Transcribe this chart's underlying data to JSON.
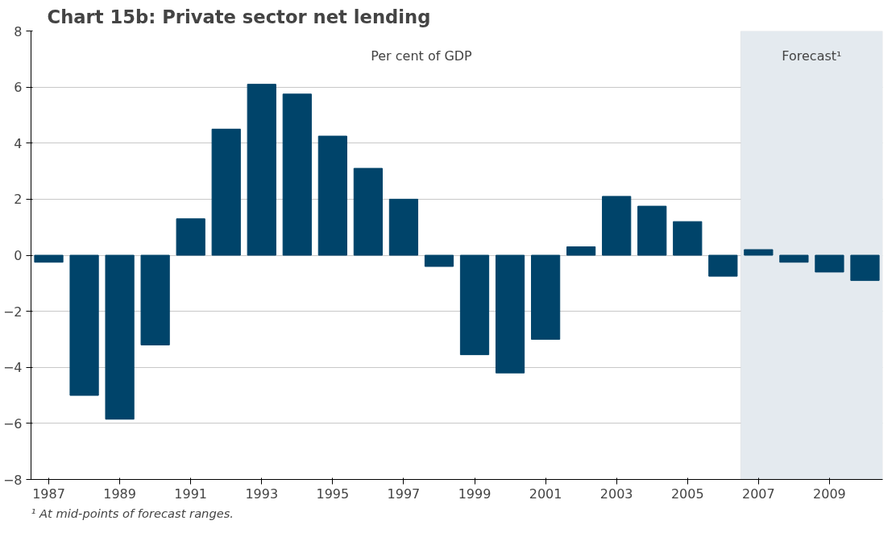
{
  "chart_data": {
    "type": "bar",
    "title": "Chart 15b: Private sector net lending",
    "x": [
      1987,
      1988,
      1989,
      1990,
      1991,
      1992,
      1993,
      1994,
      1995,
      1996,
      1997,
      1998,
      1999,
      2000,
      2001,
      2002,
      2003,
      2004,
      2005,
      2006,
      2007,
      2008,
      2009,
      2010
    ],
    "series": [
      {
        "color": "#00446a",
        "values": [
          -0.25,
          -5.0,
          -5.85,
          -3.2,
          1.3,
          4.5,
          6.1,
          5.75,
          4.25,
          3.1,
          2.0,
          -0.4,
          -3.55,
          -4.2,
          -3.0,
          0.3,
          2.1,
          1.75,
          1.2,
          -0.75,
          0.2,
          -0.25,
          -0.6,
          -0.9
        ]
      }
    ],
    "xlim": [
      1986.5,
      2010.5
    ],
    "xticks": [
      1987,
      1989,
      1991,
      1993,
      1995,
      1997,
      1999,
      2001,
      2003,
      2005,
      2007,
      2009
    ],
    "ylim": [
      -8,
      8
    ],
    "yticks": [
      -8,
      -6,
      -4,
      -2,
      0,
      2,
      4,
      6,
      8
    ],
    "grid": "y",
    "bands": [
      {
        "axis": "x",
        "from": 2006.5,
        "to": 2010.5,
        "label": "Forecast¹",
        "color": "#e4eaef"
      }
    ],
    "ylabel": "Per cent of GDP",
    "annotations": [
      "¹ At mid-points of forecast ranges."
    ]
  }
}
